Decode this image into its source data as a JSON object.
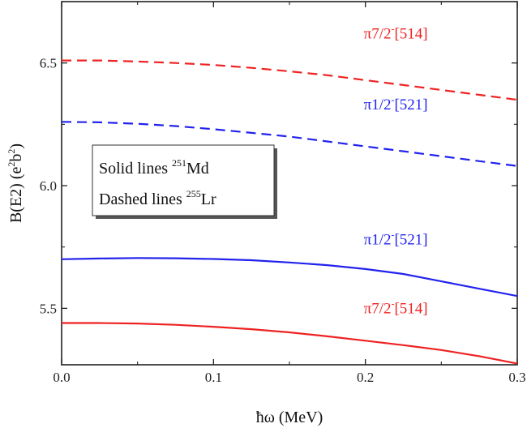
{
  "chart_data": {
    "type": "line",
    "xlabel": "ħω (MeV)",
    "ylabel": {
      "base": "B(E2) (e",
      "sup1": "2",
      "mid": "b",
      "sup2": "2",
      "end": ")"
    },
    "xlim": [
      0.0,
      0.3
    ],
    "ylim": [
      5.27,
      6.75
    ],
    "xticks": [
      0.0,
      0.1,
      0.2,
      0.3
    ],
    "xtick_labels": [
      "0.0",
      "0.1",
      "0.2",
      "0.3"
    ],
    "yticks": [
      5.5,
      6.0,
      6.5
    ],
    "ytick_labels": [
      "5.5",
      "6.0",
      "6.5"
    ],
    "legend": {
      "line1": {
        "text": "Solid lines ",
        "sup": "251",
        "nucleus": "Md"
      },
      "line2": {
        "text": "Dashed lines ",
        "sup": "255",
        "nucleus": "Lr"
      }
    },
    "series": [
      {
        "name": "Lr π7/2-[514]",
        "nucleus": "Lr",
        "style": "dashed",
        "color": "#ee2222",
        "label": {
          "main": "π7/2",
          "sup": "-",
          "tail": "[514]",
          "x": 0.22,
          "y": 6.6
        },
        "x": [
          0.0,
          0.025,
          0.05,
          0.075,
          0.1,
          0.125,
          0.15,
          0.175,
          0.2,
          0.225,
          0.25,
          0.275,
          0.3
        ],
        "y": [
          6.51,
          6.51,
          6.506,
          6.5,
          6.492,
          6.48,
          6.466,
          6.45,
          6.43,
          6.41,
          6.39,
          6.37,
          6.35
        ]
      },
      {
        "name": "Lr π1/2-[521]",
        "nucleus": "Lr",
        "style": "dashed",
        "color": "#2222ee",
        "label": {
          "main": "π1/2",
          "sup": "-",
          "tail": "[521]",
          "x": 0.22,
          "y": 6.31
        },
        "x": [
          0.0,
          0.025,
          0.05,
          0.075,
          0.1,
          0.125,
          0.15,
          0.175,
          0.2,
          0.225,
          0.25,
          0.275,
          0.3
        ],
        "y": [
          6.26,
          6.258,
          6.252,
          6.243,
          6.23,
          6.215,
          6.2,
          6.18,
          6.16,
          6.14,
          6.12,
          6.1,
          6.08
        ]
      },
      {
        "name": "Md π1/2-[521]",
        "nucleus": "Md",
        "style": "solid",
        "color": "#2222ee",
        "label": {
          "main": "π1/2",
          "sup": "-",
          "tail": "[521]",
          "x": 0.22,
          "y": 5.76
        },
        "x": [
          0.0,
          0.025,
          0.05,
          0.075,
          0.1,
          0.125,
          0.15,
          0.175,
          0.2,
          0.225,
          0.25,
          0.275,
          0.3
        ],
        "y": [
          5.7,
          5.703,
          5.705,
          5.704,
          5.701,
          5.696,
          5.687,
          5.676,
          5.66,
          5.64,
          5.61,
          5.58,
          5.55
        ]
      },
      {
        "name": "Md π7/2-[514]",
        "nucleus": "Md",
        "style": "solid",
        "color": "#ee2222",
        "label": {
          "main": "π7/2",
          "sup": "-",
          "tail": "[514]",
          "x": 0.22,
          "y": 5.48
        },
        "x": [
          0.0,
          0.025,
          0.05,
          0.075,
          0.1,
          0.125,
          0.15,
          0.175,
          0.2,
          0.225,
          0.25,
          0.275,
          0.3
        ],
        "y": [
          5.44,
          5.44,
          5.438,
          5.433,
          5.425,
          5.415,
          5.402,
          5.386,
          5.368,
          5.35,
          5.33,
          5.305,
          5.275
        ]
      }
    ]
  }
}
